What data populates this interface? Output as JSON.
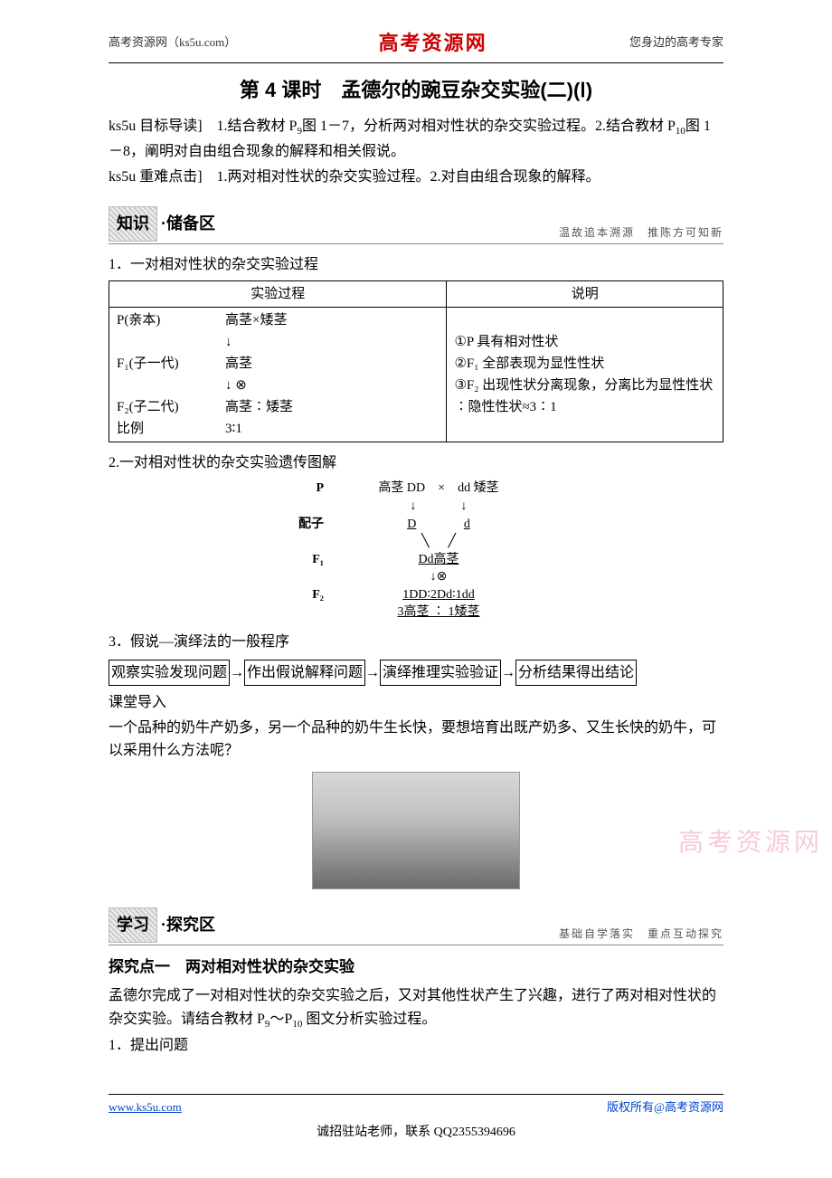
{
  "header": {
    "left": "高考资源网（ks5u.com）",
    "center": "高考资源网",
    "right": "您身边的高考专家"
  },
  "title": "第 4 课时　孟德尔的豌豆杂交实验(二)(Ⅰ)",
  "intro1_prefix": "ks5u 目标导读]　1.结合教材 P",
  "intro1_sub1": "9",
  "intro1_mid1": "图 1－7，分析两对相对性状的杂交实验过程。2.结合教材 P",
  "intro1_sub2": "10",
  "intro1_mid2": "图 1－8，阐明对自由组合现象的解释和相关假说。",
  "intro2": "ks5u 重难点击]　1.两对相对性状的杂交实验过程。2.对自由组合现象的解释。",
  "section1": {
    "tag": "知识",
    "suffix": "·储备区",
    "sub": "温故追本溯源　推陈方可知新"
  },
  "list1_head": "1．一对相对性状的杂交实验过程",
  "table": {
    "h1": "实验过程",
    "h2": "说明",
    "rows_left": [
      {
        "label": "P(亲本)",
        "val": "高茎×矮茎"
      },
      {
        "label": "",
        "val": "↓"
      },
      {
        "label": "F₁(子一代)",
        "val": "高茎"
      },
      {
        "label": "",
        "val": "↓ ⊗"
      },
      {
        "label": "F₂(子二代)",
        "val": "高茎∶矮茎"
      },
      {
        "label": "比例",
        "val": "3∶1"
      }
    ],
    "right1": "①P 具有相对性状",
    "right2": "②F₁ 全部表现为显性性状",
    "right3": "③F₂ 出现性状分离现象，分离比为显性性状∶隐性性状≈3∶1"
  },
  "list2_head": "2.一对相对性状的杂交实验遗传图解",
  "diagram": {
    "p_label": "P",
    "p_left": "高茎 DD",
    "p_mid": "×",
    "p_right": "dd 矮茎",
    "gamete_label": "配子",
    "gamete_left": "D",
    "gamete_right": "d",
    "f1_label": "F₁",
    "f1_val": "Dd高茎",
    "self_symbol": "↓⊗",
    "f2_label": "F₂",
    "f2_val": "1DD∶2Dd∶1dd",
    "f2_ratio": "3高茎 ∶ 1矮茎"
  },
  "list3_head": "3．假说—演绎法的一般程序",
  "seq": [
    "观察实验发现问题",
    "作出假说解释问题",
    "演绎推理实验验证",
    "分析结果得出结论"
  ],
  "arrow": "→",
  "classroom_head": "课堂导入",
  "classroom_body": "一个品种的奶牛产奶多，另一个品种的奶牛生长快，要想培育出既产奶多、又生长快的奶牛，可以采用什么方法呢？",
  "watermark": "高考资源网",
  "section2": {
    "tag": "学习",
    "suffix": "·探究区",
    "sub": "基础自学落实　重点互动探究"
  },
  "explore_title": "探究点一　两对相对性状的杂交实验",
  "explore_body_a": "孟德尔完成了一对相对性状的杂交实验之后，又对其他性状产生了兴趣，进行了两对相对性状的杂交实验。请结合教材 P",
  "explore_body_s1": "9",
  "explore_body_b": "～P",
  "explore_body_s2": "10",
  "explore_body_c": " 图文分析实验过程。",
  "explore_q": "1．提出问题",
  "footer": {
    "left": "www.ks5u.com",
    "right": "版权所有@高考资源网",
    "center": "诚招驻站老师，联系 QQ2355394696"
  },
  "colors": {
    "brand_red": "#cc0000",
    "link_blue": "#0044cc",
    "watermark_pink": "#f5b5c8"
  }
}
